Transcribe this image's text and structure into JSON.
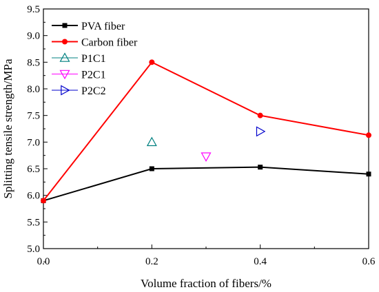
{
  "chart_data": {
    "type": "line",
    "xlabel": "Volume fraction of fibers/%",
    "ylabel": "Splitting tensile strength/MPa",
    "xlim": [
      0.0,
      0.6
    ],
    "ylim": [
      5.0,
      9.5
    ],
    "xticks": [
      "0.0",
      "0.2",
      "0.4",
      "0.6"
    ],
    "yticks": [
      "5.0",
      "5.5",
      "6.0",
      "6.5",
      "7.0",
      "7.5",
      "8.0",
      "8.5",
      "9.0",
      "9.5"
    ],
    "grid": false,
    "legend_position": "top-left",
    "series": [
      {
        "name": "PVA fiber",
        "style": "line",
        "marker": "square",
        "color": "#000000",
        "x": [
          0.0,
          0.2,
          0.4,
          0.6
        ],
        "y": [
          5.9,
          6.5,
          6.53,
          6.4
        ]
      },
      {
        "name": "Carbon fiber",
        "style": "line",
        "marker": "circle",
        "color": "#ff0000",
        "x": [
          0.0,
          0.2,
          0.4,
          0.6
        ],
        "y": [
          5.9,
          8.5,
          7.5,
          7.13
        ]
      },
      {
        "name": "P1C1",
        "style": "point",
        "marker": "triangle-up",
        "color": "#008080",
        "x": [
          0.2
        ],
        "y": [
          7.0
        ]
      },
      {
        "name": "P2C1",
        "style": "point",
        "marker": "triangle-down",
        "color": "#ff00ff",
        "x": [
          0.3
        ],
        "y": [
          6.73
        ]
      },
      {
        "name": "P2C2",
        "style": "point",
        "marker": "triangle-right",
        "color": "#0000cc",
        "x": [
          0.4
        ],
        "y": [
          7.2
        ]
      }
    ]
  }
}
